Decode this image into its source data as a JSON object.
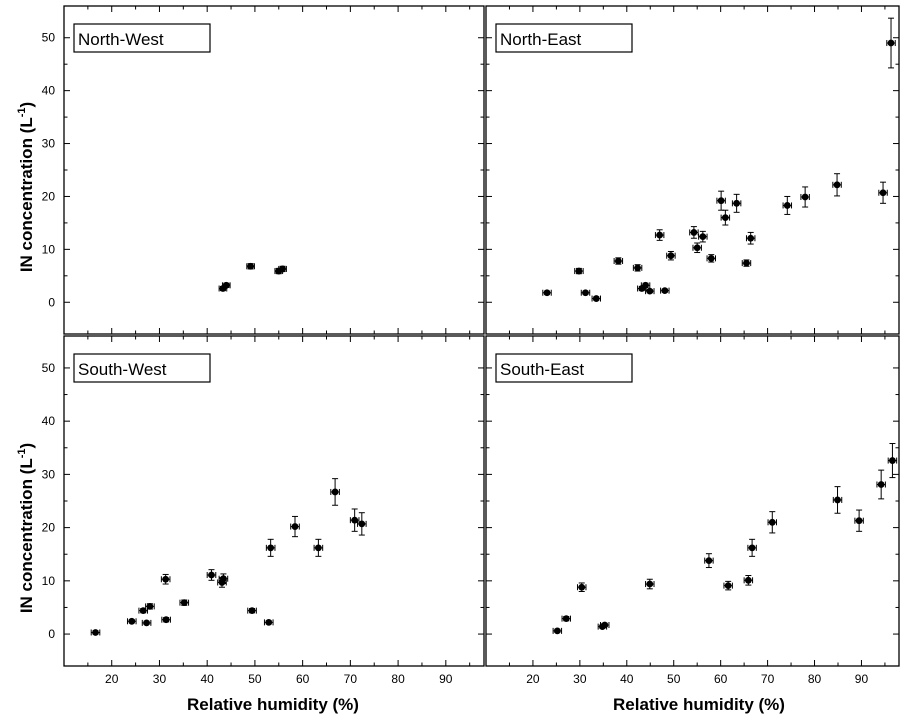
{
  "figure": {
    "ylabel_main": "IN concentration  (L",
    "ylabel_sup": "-1",
    "ylabel_close": ")",
    "xlabel": "Relative humidity (%)",
    "x_ticks": [
      20,
      30,
      40,
      50,
      60,
      70,
      80,
      90
    ],
    "y_ticks": [
      0,
      10,
      20,
      30,
      40,
      50
    ]
  },
  "chart_data": [
    {
      "type": "scatter",
      "title": "North-West",
      "xlim": [
        10,
        98
      ],
      "ylim": [
        -6,
        56
      ],
      "x_error": 0.8,
      "points": [
        {
          "x": 43.3,
          "y": 2.6,
          "yerr": 0.4
        },
        {
          "x": 44.0,
          "y": 3.2,
          "yerr": 0.4
        },
        {
          "x": 49.1,
          "y": 6.8,
          "yerr": 0.5
        },
        {
          "x": 55.0,
          "y": 5.9,
          "yerr": 0.5
        },
        {
          "x": 55.8,
          "y": 6.3,
          "yerr": 0.5
        }
      ]
    },
    {
      "type": "scatter",
      "title": "North-East",
      "xlim": [
        10,
        98
      ],
      "ylim": [
        -6,
        56
      ],
      "x_error": 0.9,
      "points": [
        {
          "x": 23.0,
          "y": 1.8,
          "yerr": 0.3
        },
        {
          "x": 29.8,
          "y": 5.9,
          "yerr": 0.5
        },
        {
          "x": 31.2,
          "y": 1.8,
          "yerr": 0.3
        },
        {
          "x": 33.5,
          "y": 0.7,
          "yerr": 0.3
        },
        {
          "x": 38.2,
          "y": 7.8,
          "yerr": 0.6
        },
        {
          "x": 42.3,
          "y": 6.5,
          "yerr": 0.6
        },
        {
          "x": 43.2,
          "y": 2.6,
          "yerr": 0.4
        },
        {
          "x": 44.0,
          "y": 3.2,
          "yerr": 0.4
        },
        {
          "x": 44.9,
          "y": 2.1,
          "yerr": 0.3
        },
        {
          "x": 47.0,
          "y": 12.7,
          "yerr": 1.0
        },
        {
          "x": 48.1,
          "y": 2.2,
          "yerr": 0.3
        },
        {
          "x": 49.4,
          "y": 8.8,
          "yerr": 0.8
        },
        {
          "x": 54.3,
          "y": 13.2,
          "yerr": 1.1
        },
        {
          "x": 55.0,
          "y": 10.3,
          "yerr": 0.9
        },
        {
          "x": 56.2,
          "y": 12.4,
          "yerr": 1.0
        },
        {
          "x": 58.0,
          "y": 8.3,
          "yerr": 0.7
        },
        {
          "x": 60.1,
          "y": 19.2,
          "yerr": 1.8
        },
        {
          "x": 61.0,
          "y": 16.0,
          "yerr": 1.4
        },
        {
          "x": 63.4,
          "y": 18.7,
          "yerr": 1.7
        },
        {
          "x": 65.5,
          "y": 7.4,
          "yerr": 0.6
        },
        {
          "x": 66.4,
          "y": 12.1,
          "yerr": 1.1
        },
        {
          "x": 74.2,
          "y": 18.3,
          "yerr": 1.7
        },
        {
          "x": 78.0,
          "y": 19.9,
          "yerr": 1.9
        },
        {
          "x": 84.8,
          "y": 22.2,
          "yerr": 2.1
        },
        {
          "x": 94.6,
          "y": 20.7,
          "yerr": 2.0
        },
        {
          "x": 96.3,
          "y": 49.0,
          "yerr": 4.7
        }
      ]
    },
    {
      "type": "scatter",
      "title": "South-West",
      "xlim": [
        10,
        98
      ],
      "ylim": [
        -6,
        56
      ],
      "x_error": 0.9,
      "points": [
        {
          "x": 16.6,
          "y": 0.3,
          "yerr": 0.3
        },
        {
          "x": 24.2,
          "y": 2.4,
          "yerr": 0.3
        },
        {
          "x": 26.6,
          "y": 4.4,
          "yerr": 0.4
        },
        {
          "x": 27.3,
          "y": 2.1,
          "yerr": 0.3
        },
        {
          "x": 28.0,
          "y": 5.2,
          "yerr": 0.5
        },
        {
          "x": 31.3,
          "y": 10.3,
          "yerr": 0.9
        },
        {
          "x": 31.4,
          "y": 2.7,
          "yerr": 0.4
        },
        {
          "x": 35.2,
          "y": 5.9,
          "yerr": 0.5
        },
        {
          "x": 40.9,
          "y": 11.1,
          "yerr": 1.0
        },
        {
          "x": 43.1,
          "y": 9.7,
          "yerr": 0.9
        },
        {
          "x": 43.4,
          "y": 10.4,
          "yerr": 0.9
        },
        {
          "x": 49.4,
          "y": 4.4,
          "yerr": 0.4
        },
        {
          "x": 52.9,
          "y": 2.2,
          "yerr": 0.3
        },
        {
          "x": 53.3,
          "y": 16.2,
          "yerr": 1.6
        },
        {
          "x": 58.4,
          "y": 20.2,
          "yerr": 1.9
        },
        {
          "x": 63.3,
          "y": 16.2,
          "yerr": 1.6
        },
        {
          "x": 66.8,
          "y": 26.7,
          "yerr": 2.5
        },
        {
          "x": 70.9,
          "y": 21.4,
          "yerr": 2.1
        },
        {
          "x": 72.4,
          "y": 20.7,
          "yerr": 2.1
        }
      ]
    },
    {
      "type": "scatter",
      "title": "South-East",
      "xlim": [
        10,
        98
      ],
      "ylim": [
        -6,
        56
      ],
      "x_error": 0.9,
      "points": [
        {
          "x": 25.2,
          "y": 0.6,
          "yerr": 0.3
        },
        {
          "x": 27.1,
          "y": 2.9,
          "yerr": 0.4
        },
        {
          "x": 30.4,
          "y": 8.8,
          "yerr": 0.8
        },
        {
          "x": 34.8,
          "y": 1.4,
          "yerr": 0.3
        },
        {
          "x": 35.3,
          "y": 1.7,
          "yerr": 0.3
        },
        {
          "x": 44.9,
          "y": 9.4,
          "yerr": 0.9
        },
        {
          "x": 57.5,
          "y": 13.8,
          "yerr": 1.3
        },
        {
          "x": 61.6,
          "y": 9.1,
          "yerr": 0.8
        },
        {
          "x": 65.9,
          "y": 10.1,
          "yerr": 0.9
        },
        {
          "x": 66.7,
          "y": 16.2,
          "yerr": 1.6
        },
        {
          "x": 71.0,
          "y": 21.0,
          "yerr": 2.0
        },
        {
          "x": 84.9,
          "y": 25.2,
          "yerr": 2.5
        },
        {
          "x": 89.5,
          "y": 21.3,
          "yerr": 2.0
        },
        {
          "x": 94.2,
          "y": 28.1,
          "yerr": 2.7
        },
        {
          "x": 96.6,
          "y": 32.6,
          "yerr": 3.2
        }
      ]
    }
  ]
}
